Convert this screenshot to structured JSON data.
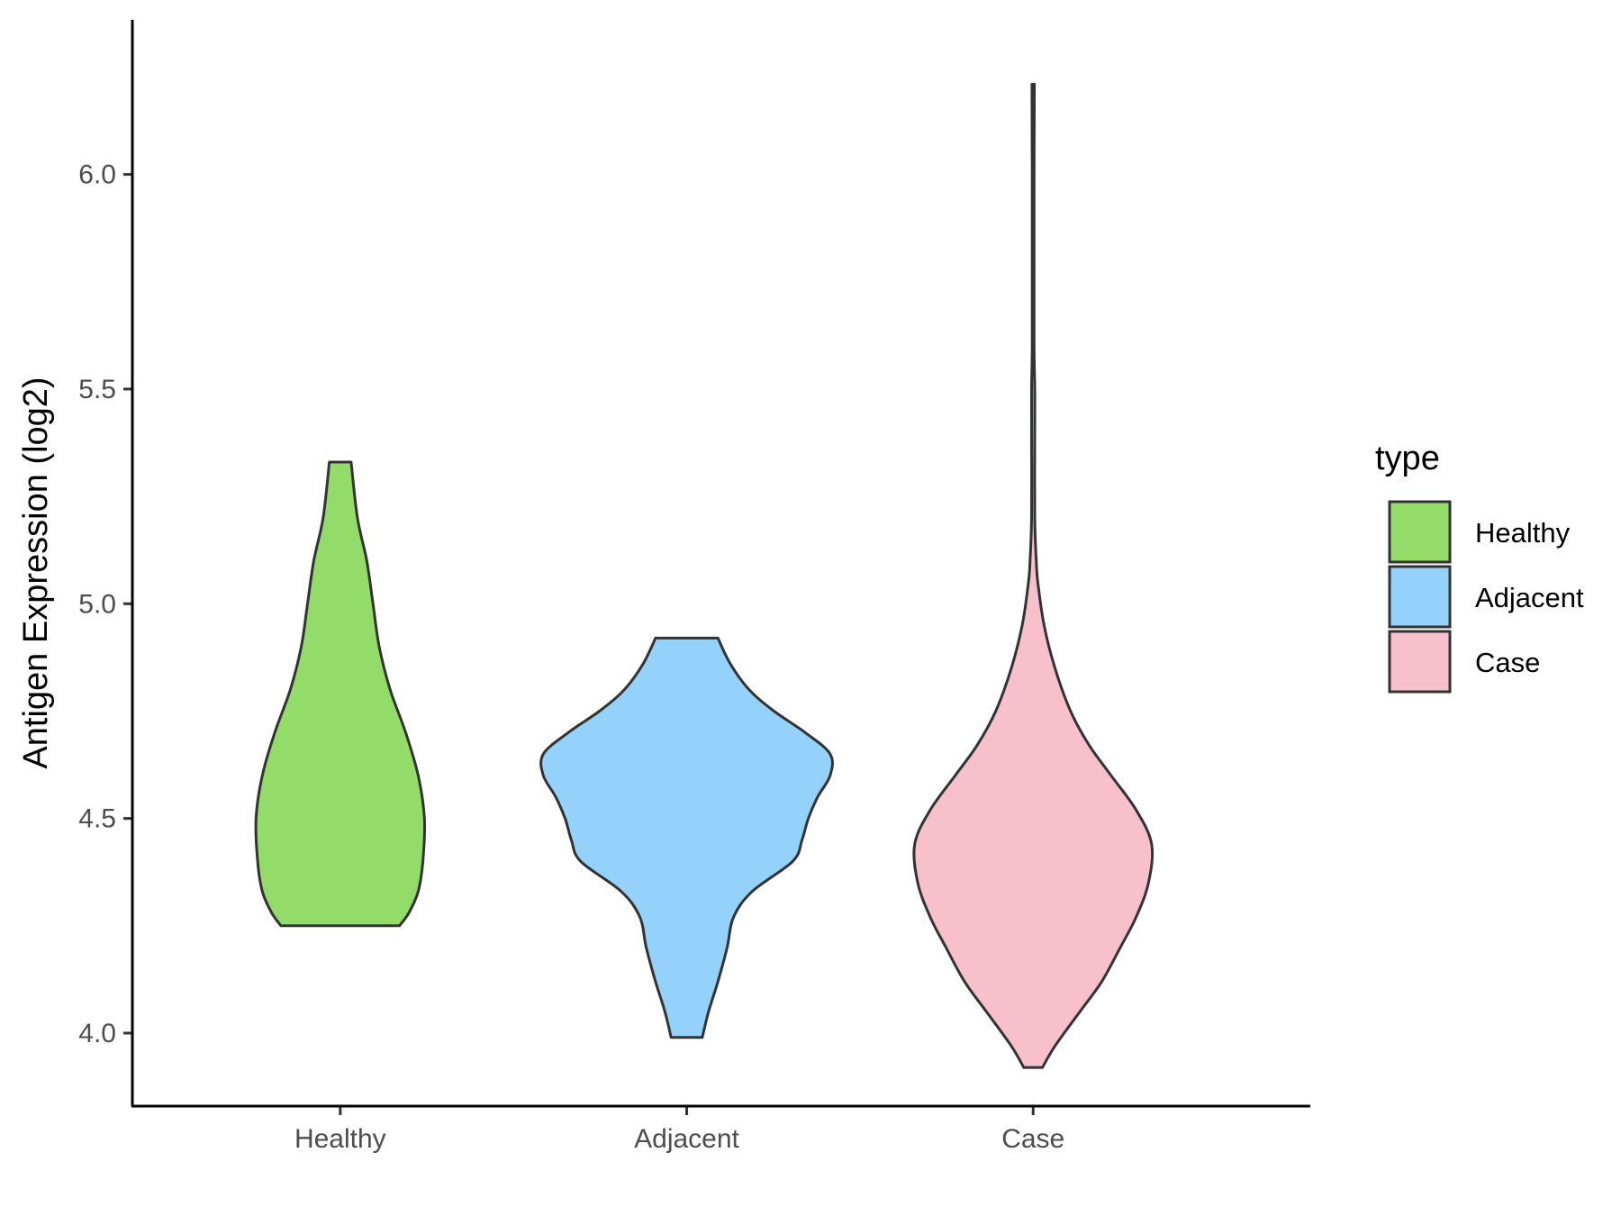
{
  "chart_data": {
    "type": "violin",
    "title": "",
    "xlabel": "",
    "ylabel": "Antigen Expression (log2)",
    "categories": [
      "Healthy",
      "Adjacent",
      "Case"
    ],
    "ylim": [
      3.83,
      6.36
    ],
    "yticks": [
      4.0,
      4.5,
      5.0,
      5.5,
      6.0
    ],
    "ytick_labels": [
      "4.0",
      "4.5",
      "5.0",
      "5.5",
      "6.0"
    ],
    "grid": false,
    "legend": {
      "title": "type",
      "position": "right",
      "entries": [
        "Healthy",
        "Adjacent",
        "Case"
      ]
    },
    "colors": {
      "Healthy": "#93dc6a",
      "Adjacent": "#94d2fc",
      "Case": "#f8c0cb"
    },
    "violins": [
      {
        "category": "Healthy",
        "max_half_width": 0.27,
        "profile": [
          [
            4.25,
            0.19
          ],
          [
            4.28,
            0.22
          ],
          [
            4.33,
            0.25
          ],
          [
            4.4,
            0.265
          ],
          [
            4.5,
            0.27
          ],
          [
            4.6,
            0.25
          ],
          [
            4.7,
            0.21
          ],
          [
            4.8,
            0.16
          ],
          [
            4.9,
            0.125
          ],
          [
            5.0,
            0.105
          ],
          [
            5.1,
            0.085
          ],
          [
            5.2,
            0.055
          ],
          [
            5.33,
            0.035
          ]
        ]
      },
      {
        "category": "Adjacent",
        "max_half_width": 0.46,
        "profile": [
          [
            3.99,
            0.05
          ],
          [
            4.05,
            0.07
          ],
          [
            4.12,
            0.1
          ],
          [
            4.2,
            0.13
          ],
          [
            4.27,
            0.15
          ],
          [
            4.33,
            0.21
          ],
          [
            4.4,
            0.34
          ],
          [
            4.45,
            0.37
          ],
          [
            4.5,
            0.39
          ],
          [
            4.55,
            0.42
          ],
          [
            4.6,
            0.46
          ],
          [
            4.65,
            0.46
          ],
          [
            4.7,
            0.38
          ],
          [
            4.75,
            0.28
          ],
          [
            4.8,
            0.2
          ],
          [
            4.86,
            0.14
          ],
          [
            4.92,
            0.1
          ]
        ]
      },
      {
        "category": "Case",
        "max_half_width": 0.38,
        "profile": [
          [
            3.92,
            0.03
          ],
          [
            3.97,
            0.07
          ],
          [
            4.05,
            0.15
          ],
          [
            4.12,
            0.22
          ],
          [
            4.2,
            0.28
          ],
          [
            4.27,
            0.33
          ],
          [
            4.35,
            0.37
          ],
          [
            4.44,
            0.38
          ],
          [
            4.52,
            0.33
          ],
          [
            4.6,
            0.25
          ],
          [
            4.67,
            0.18
          ],
          [
            4.75,
            0.12
          ],
          [
            4.85,
            0.07
          ],
          [
            4.95,
            0.035
          ],
          [
            5.05,
            0.015
          ],
          [
            5.1,
            0.01
          ],
          [
            5.2,
            0.005
          ],
          [
            5.4,
            0.005
          ],
          [
            5.5,
            0.005
          ],
          [
            5.6,
            0.003
          ],
          [
            5.8,
            0.003
          ],
          [
            6.0,
            0.003
          ],
          [
            6.21,
            0.004
          ]
        ]
      }
    ]
  }
}
